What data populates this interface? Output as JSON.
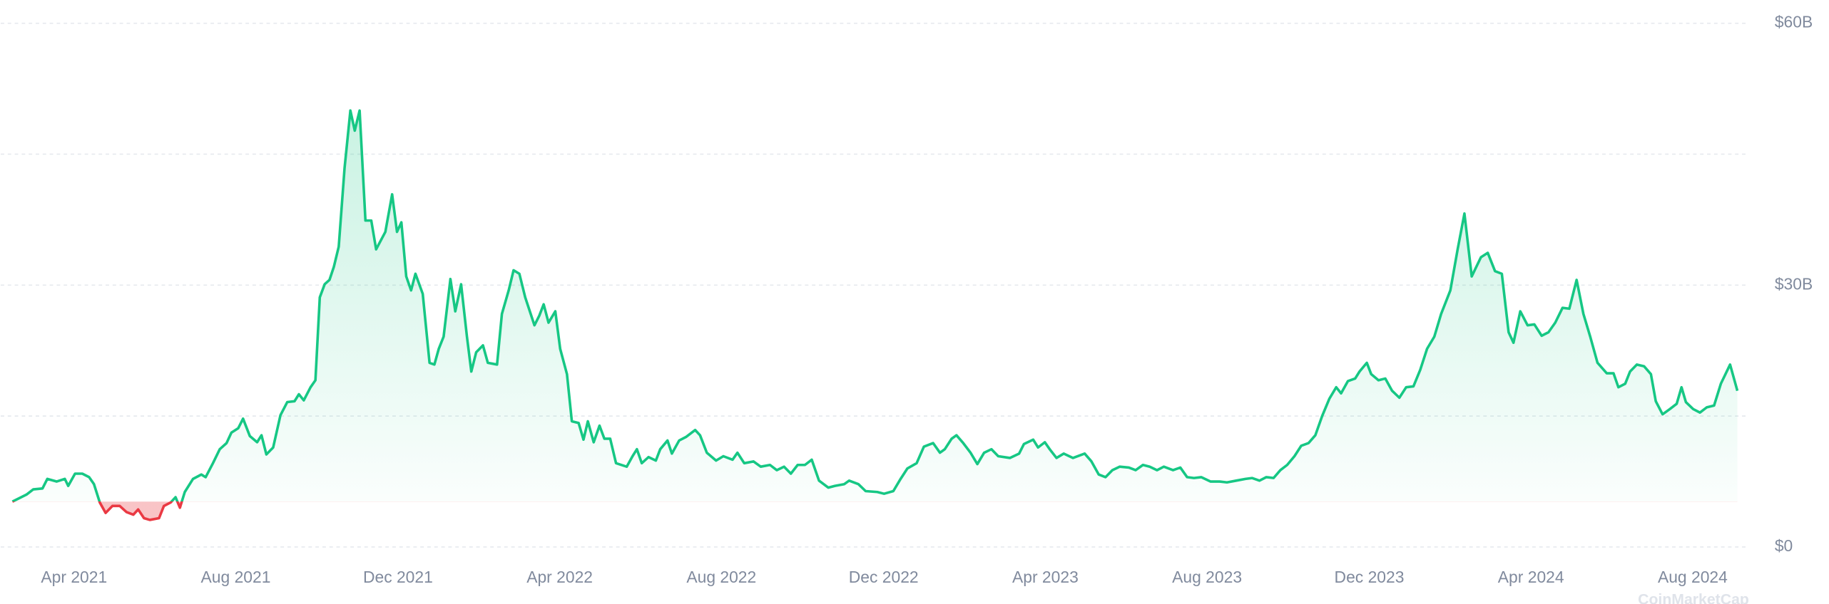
{
  "chart_data": {
    "type": "area",
    "color": "#16c784",
    "negative_color": "#ea3943",
    "grid": true,
    "watermark": "CoinMarketCap",
    "xlim": [
      2021.099,
      2024.699
    ],
    "ylim": [
      0,
      60
    ],
    "yticks": [
      {
        "value": 0,
        "label": "$0"
      },
      {
        "value": 30,
        "label": "$30B"
      },
      {
        "value": 60,
        "label": "$60B"
      }
    ],
    "minor_yticks": [
      15,
      45
    ],
    "xticks": [
      {
        "value": 2021.25,
        "label": "Apr 2021"
      },
      {
        "value": 2021.583,
        "label": "Aug 2021"
      },
      {
        "value": 2021.917,
        "label": "Dec 2021"
      },
      {
        "value": 2022.25,
        "label": "Apr 2022"
      },
      {
        "value": 2022.583,
        "label": "Aug 2022"
      },
      {
        "value": 2022.917,
        "label": "Dec 2022"
      },
      {
        "value": 2023.25,
        "label": "Apr 2023"
      },
      {
        "value": 2023.583,
        "label": "Aug 2023"
      },
      {
        "value": 2023.917,
        "label": "Dec 2023"
      },
      {
        "value": 2024.25,
        "label": "Apr 2024"
      },
      {
        "value": 2024.583,
        "label": "Aug 2024"
      }
    ],
    "x": [
      2021.123,
      2021.152,
      2021.166,
      2021.185,
      2021.195,
      2021.214,
      2021.231,
      2021.238,
      2021.252,
      2021.267,
      2021.281,
      2021.291,
      2021.303,
      2021.315,
      2021.329,
      2021.344,
      2021.358,
      2021.372,
      2021.382,
      2021.394,
      2021.406,
      2021.425,
      2021.435,
      2021.449,
      2021.459,
      2021.468,
      2021.478,
      2021.495,
      2021.512,
      2021.521,
      2021.536,
      2021.55,
      2021.564,
      2021.574,
      2021.588,
      2021.598,
      2021.612,
      2021.627,
      2021.636,
      2021.646,
      2021.66,
      2021.675,
      2021.689,
      2021.704,
      2021.713,
      2021.723,
      2021.737,
      2021.747,
      2021.756,
      2021.766,
      2021.776,
      2021.785,
      2021.795,
      2021.807,
      2021.819,
      2021.828,
      2021.838,
      2021.85,
      2021.862,
      2021.872,
      2021.891,
      2021.905,
      2021.915,
      2021.924,
      2021.934,
      2021.944,
      2021.953,
      2021.968,
      2021.982,
      2021.992,
      2022.001,
      2022.011,
      2022.025,
      2022.035,
      2022.047,
      2022.059,
      2022.068,
      2022.078,
      2022.092,
      2022.102,
      2022.121,
      2022.131,
      2022.145,
      2022.155,
      2022.167,
      2022.179,
      2022.198,
      2022.208,
      2022.217,
      2022.227,
      2022.241,
      2022.251,
      2022.265,
      2022.275,
      2022.289,
      2022.299,
      2022.308,
      2022.32,
      2022.332,
      2022.342,
      2022.354,
      2022.366,
      2022.388,
      2022.4,
      2022.409,
      2022.419,
      2022.433,
      2022.448,
      2022.457,
      2022.472,
      2022.481,
      2022.496,
      2022.51,
      2022.529,
      2022.539,
      2022.553,
      2022.572,
      2022.587,
      2022.606,
      2022.616,
      2022.63,
      2022.649,
      2022.664,
      2022.683,
      2022.697,
      2022.712,
      2022.726,
      2022.74,
      2022.755,
      2022.769,
      2022.784,
      2022.803,
      2022.817,
      2022.836,
      2022.846,
      2022.865,
      2022.88,
      2022.904,
      2022.918,
      2022.937,
      2022.952,
      2022.966,
      2022.985,
      2023.0,
      2023.019,
      2023.033,
      2023.043,
      2023.057,
      2023.067,
      2023.081,
      2023.096,
      2023.11,
      2023.124,
      2023.139,
      2023.153,
      2023.177,
      2023.196,
      2023.206,
      2023.225,
      2023.235,
      2023.249,
      2023.259,
      2023.273,
      2023.288,
      2023.307,
      2023.331,
      2023.345,
      2023.36,
      2023.374,
      2023.388,
      2023.403,
      2023.422,
      2023.436,
      2023.451,
      2023.465,
      2023.48,
      2023.494,
      2023.513,
      2023.528,
      2023.542,
      2023.556,
      2023.571,
      2023.59,
      2023.609,
      2023.624,
      2023.643,
      2023.662,
      2023.676,
      2023.691,
      2023.705,
      2023.72,
      2023.734,
      2023.748,
      2023.763,
      2023.777,
      2023.792,
      2023.806,
      2023.82,
      2023.835,
      2023.849,
      2023.859,
      2023.873,
      2023.888,
      2023.897,
      2023.912,
      2023.921,
      2023.936,
      2023.95,
      2023.964,
      2023.979,
      2023.993,
      2024.008,
      2024.022,
      2024.036,
      2024.051,
      2024.065,
      2024.084,
      2024.099,
      2024.113,
      2024.128,
      2024.147,
      2024.161,
      2024.176,
      2024.19,
      2024.204,
      2024.214,
      2024.228,
      2024.243,
      2024.257,
      2024.272,
      2024.286,
      2024.3,
      2024.315,
      2024.329,
      2024.344,
      2024.358,
      2024.372,
      2024.387,
      2024.406,
      2024.42,
      2024.43,
      2024.444,
      2024.454,
      2024.468,
      2024.483,
      2024.497,
      2024.507,
      2024.521,
      2024.536,
      2024.55,
      2024.56,
      2024.569,
      2024.584,
      2024.598,
      2024.612,
      2024.627,
      2024.641,
      2024.66,
      2024.675
    ],
    "values": [
      5.2,
      6.0,
      6.6,
      6.7,
      7.8,
      7.5,
      7.8,
      7.0,
      8.4,
      8.4,
      8.0,
      7.2,
      5.1,
      3.9,
      4.7,
      4.7,
      4.0,
      3.7,
      4.3,
      3.3,
      3.1,
      3.3,
      4.7,
      5.1,
      5.7,
      4.5,
      6.3,
      7.8,
      8.3,
      8.0,
      9.6,
      11.2,
      11.9,
      13.1,
      13.6,
      14.7,
      12.7,
      12.0,
      12.8,
      10.6,
      11.4,
      15.1,
      16.6,
      16.7,
      17.5,
      16.8,
      18.3,
      19.1,
      28.6,
      30.1,
      30.6,
      32.1,
      34.4,
      43.4,
      50.0,
      47.7,
      50.0,
      37.4,
      37.4,
      34.1,
      36.1,
      40.4,
      36.1,
      37.2,
      31.0,
      29.4,
      31.3,
      29.0,
      21.1,
      20.9,
      22.7,
      24.1,
      30.7,
      27.0,
      30.1,
      24.1,
      20.1,
      22.3,
      23.1,
      21.1,
      20.9,
      26.7,
      29.4,
      31.7,
      31.3,
      28.6,
      25.4,
      26.5,
      27.8,
      25.7,
      27.0,
      22.7,
      19.8,
      14.4,
      14.2,
      12.3,
      14.4,
      12.0,
      13.9,
      12.4,
      12.4,
      9.6,
      9.2,
      10.4,
      11.2,
      9.6,
      10.3,
      9.9,
      11.2,
      12.2,
      10.7,
      12.2,
      12.6,
      13.4,
      12.8,
      10.8,
      9.9,
      10.4,
      10.0,
      10.8,
      9.6,
      9.8,
      9.2,
      9.4,
      8.8,
      9.2,
      8.4,
      9.4,
      9.4,
      10.0,
      7.6,
      6.8,
      7.0,
      7.2,
      7.6,
      7.2,
      6.4,
      6.3,
      6.1,
      6.4,
      7.8,
      9.0,
      9.6,
      11.5,
      11.9,
      10.8,
      11.2,
      12.4,
      12.8,
      11.9,
      10.8,
      9.5,
      10.8,
      11.2,
      10.4,
      10.2,
      10.7,
      11.8,
      12.3,
      11.4,
      12.0,
      11.2,
      10.2,
      10.7,
      10.2,
      10.7,
      9.8,
      8.3,
      8.0,
      8.8,
      9.2,
      9.1,
      8.8,
      9.4,
      9.2,
      8.8,
      9.2,
      8.8,
      9.1,
      8.0,
      7.9,
      8.0,
      7.5,
      7.5,
      7.4,
      7.6,
      7.8,
      7.9,
      7.6,
      8.0,
      7.9,
      8.8,
      9.4,
      10.4,
      11.6,
      11.9,
      12.8,
      15.0,
      17.0,
      18.3,
      17.6,
      19.0,
      19.3,
      20.1,
      21.1,
      19.8,
      19.1,
      19.3,
      17.9,
      17.1,
      18.3,
      18.4,
      20.3,
      22.7,
      24.1,
      26.7,
      29.4,
      34.1,
      38.2,
      31.0,
      33.2,
      33.7,
      31.6,
      31.3,
      24.6,
      23.4,
      27.0,
      25.4,
      25.5,
      24.2,
      24.6,
      25.7,
      27.4,
      27.3,
      30.6,
      26.7,
      24.1,
      21.1,
      19.9,
      19.9,
      18.3,
      18.7,
      20.1,
      20.9,
      20.7,
      19.8,
      16.7,
      15.2,
      15.8,
      16.4,
      18.3,
      16.6,
      15.8,
      15.4,
      16.0,
      16.2,
      18.7,
      20.9,
      17.9
    ]
  }
}
